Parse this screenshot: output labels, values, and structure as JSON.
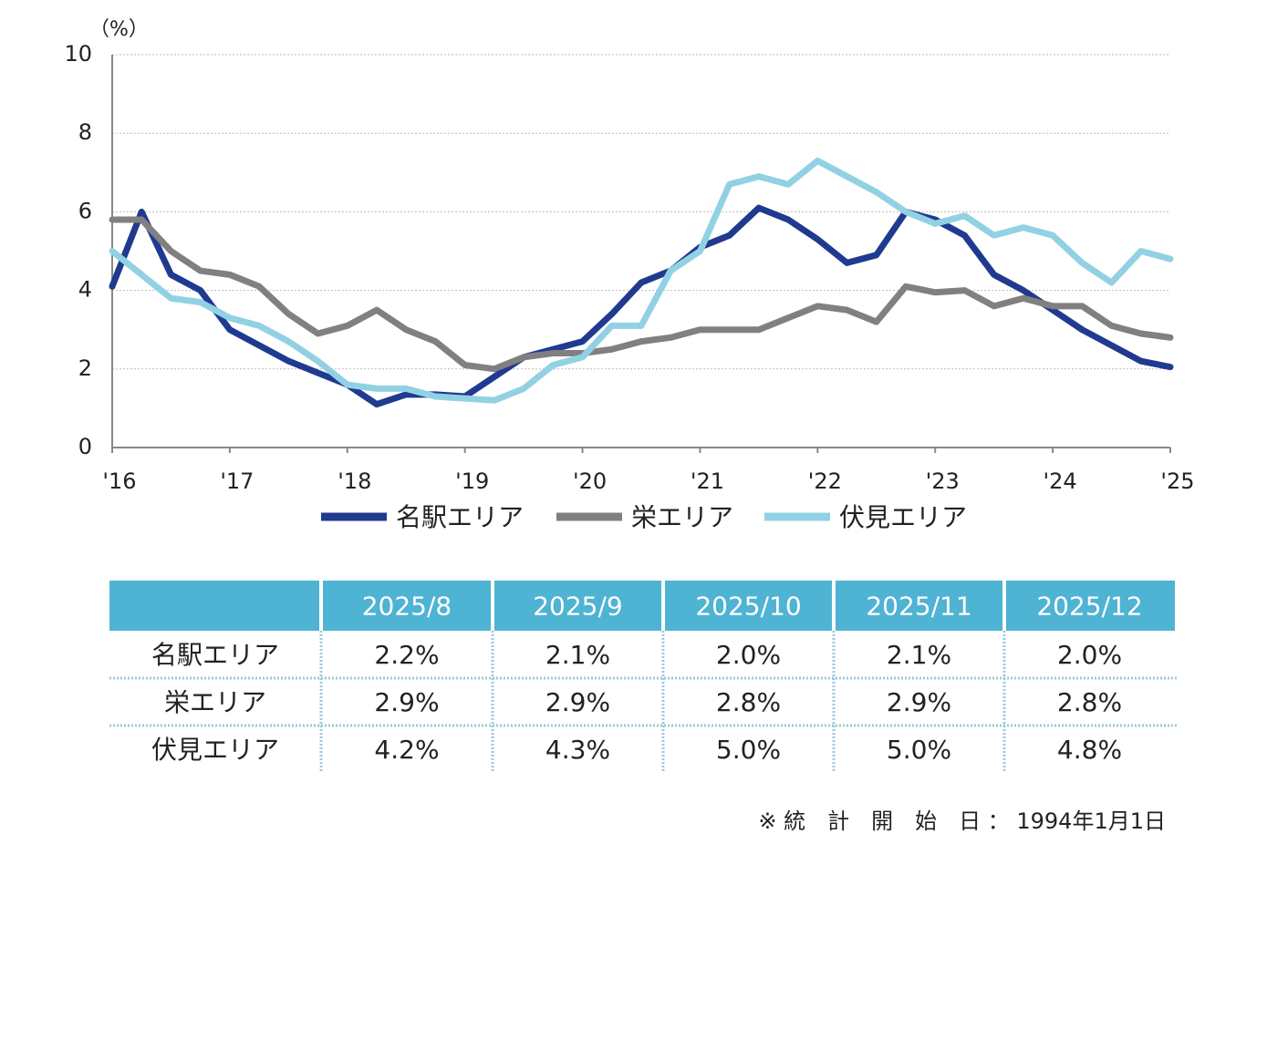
{
  "chart_data": {
    "type": "line",
    "y_unit_label": "（%）",
    "x": [
      2016,
      2016.25,
      2016.5,
      2016.75,
      2017,
      2017.25,
      2017.5,
      2017.75,
      2018,
      2018.25,
      2018.5,
      2018.75,
      2019,
      2019.25,
      2019.5,
      2019.75,
      2020,
      2020.25,
      2020.5,
      2020.75,
      2021,
      2021.25,
      2021.5,
      2021.75,
      2022,
      2022.25,
      2022.5,
      2022.75,
      2023,
      2023.25,
      2023.5,
      2023.75,
      2024,
      2024.25,
      2024.5,
      2024.75,
      2025
    ],
    "series": [
      {
        "name": "名駅エリア",
        "color": "#1f3a8f",
        "values": [
          4.1,
          6.0,
          4.4,
          4.0,
          3.0,
          2.6,
          2.2,
          1.9,
          1.6,
          1.1,
          1.35,
          1.35,
          1.3,
          1.8,
          2.3,
          2.5,
          2.7,
          3.4,
          4.2,
          4.5,
          5.1,
          5.4,
          6.1,
          5.8,
          5.3,
          4.7,
          4.9,
          6.0,
          5.8,
          5.4,
          4.4,
          4.0,
          3.5,
          3.0,
          2.6,
          2.2,
          2.05
        ]
      },
      {
        "name": "栄エリア",
        "color": "#808080",
        "values": [
          5.8,
          5.8,
          5.0,
          4.5,
          4.4,
          4.1,
          3.4,
          2.9,
          3.1,
          3.5,
          3.0,
          2.7,
          2.1,
          2.0,
          2.3,
          2.4,
          2.4,
          2.5,
          2.7,
          2.8,
          3.0,
          3.0,
          3.0,
          3.3,
          3.6,
          3.5,
          3.2,
          4.1,
          3.95,
          4.0,
          3.6,
          3.8,
          3.6,
          3.6,
          3.1,
          2.9,
          2.8
        ]
      },
      {
        "name": "伏見エリア",
        "color": "#92d1e4",
        "values": [
          5.0,
          4.4,
          3.8,
          3.7,
          3.3,
          3.1,
          2.7,
          2.2,
          1.6,
          1.5,
          1.5,
          1.3,
          1.25,
          1.2,
          1.5,
          2.1,
          2.3,
          3.1,
          3.1,
          4.5,
          5.0,
          6.7,
          6.9,
          6.7,
          7.3,
          6.9,
          6.5,
          6.0,
          5.7,
          5.9,
          5.4,
          5.6,
          5.4,
          4.7,
          4.2,
          5.0,
          4.8
        ]
      }
    ],
    "xlim": [
      2016,
      2025
    ],
    "xticks": [
      {
        "value": 2016,
        "label": "'16"
      },
      {
        "value": 2017,
        "label": "'17"
      },
      {
        "value": 2018,
        "label": "'18"
      },
      {
        "value": 2019,
        "label": "'19"
      },
      {
        "value": 2020,
        "label": "'20"
      },
      {
        "value": 2021,
        "label": "'21"
      },
      {
        "value": 2022,
        "label": "'22"
      },
      {
        "value": 2023,
        "label": "'23"
      },
      {
        "value": 2024,
        "label": "'24"
      },
      {
        "value": 2025,
        "label": "'25"
      }
    ],
    "ylim": [
      0,
      10
    ],
    "yticks": [
      0,
      2,
      4,
      6,
      8,
      10
    ],
    "grid": true,
    "legend": "bottom"
  },
  "table": {
    "header": [
      "2025/8",
      "2025/9",
      "2025/10",
      "2025/11",
      "2025/12"
    ],
    "rows": [
      [
        "名駅エリア",
        "2.2%",
        "2.1%",
        "2.0%",
        "2.1%",
        "2.0%"
      ],
      [
        "栄エリア",
        "2.9%",
        "2.9%",
        "2.8%",
        "2.9%",
        "2.8%"
      ],
      [
        "伏見エリア",
        "4.2%",
        "4.3%",
        "5.0%",
        "5.0%",
        "4.8%"
      ]
    ]
  },
  "note": "※ 統　計　開　始　日 ： 1994年1月1日"
}
